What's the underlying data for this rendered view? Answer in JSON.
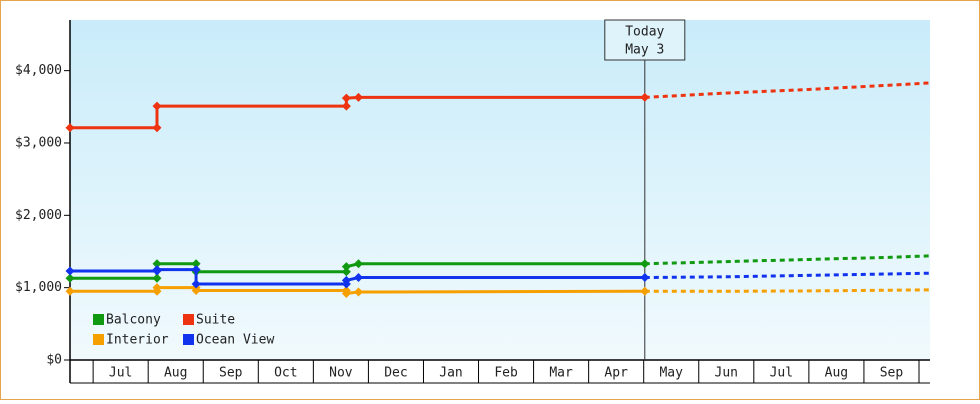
{
  "chart_data": {
    "type": "line",
    "xlim": [
      -0.42,
      15.2
    ],
    "ylim": [
      0,
      4700
    ],
    "yticks": [
      {
        "value": 0,
        "label": "$0"
      },
      {
        "value": 1000,
        "label": "$1,000"
      },
      {
        "value": 2000,
        "label": "$2,000"
      },
      {
        "value": 3000,
        "label": "$3,000"
      },
      {
        "value": 4000,
        "label": "$4,000"
      }
    ],
    "xticks": [
      {
        "value": 0.5,
        "label": "Jul"
      },
      {
        "value": 1.5,
        "label": "Aug"
      },
      {
        "value": 2.5,
        "label": "Sep"
      },
      {
        "value": 3.5,
        "label": "Oct"
      },
      {
        "value": 4.5,
        "label": "Nov"
      },
      {
        "value": 5.5,
        "label": "Dec"
      },
      {
        "value": 6.5,
        "label": "Jan"
      },
      {
        "value": 7.5,
        "label": "Feb"
      },
      {
        "value": 8.5,
        "label": "Mar"
      },
      {
        "value": 9.5,
        "label": "Apr"
      },
      {
        "value": 10.5,
        "label": "May"
      },
      {
        "value": 11.5,
        "label": "Jun"
      },
      {
        "value": 12.5,
        "label": "Jul"
      },
      {
        "value": 13.5,
        "label": "Aug"
      },
      {
        "value": 14.5,
        "label": "Sep"
      }
    ],
    "annotation": {
      "x": 10.02,
      "lines": [
        "Today",
        "May 3"
      ]
    },
    "series": [
      {
        "name": "Balcony",
        "color": "#119911",
        "x": [
          -0.42,
          1.16,
          1.16,
          1.87,
          1.87,
          4.6,
          4.6,
          4.82,
          10.02
        ],
        "values": [
          1130,
          1130,
          1330,
          1330,
          1220,
          1220,
          1290,
          1330,
          1330
        ],
        "forecast_x": [
          10.02,
          11.5,
          13,
          14.5,
          15.2
        ],
        "forecast_values": [
          1330,
          1360,
          1390,
          1420,
          1440
        ]
      },
      {
        "name": "Suite",
        "color": "#ee3311",
        "x": [
          -0.42,
          1.16,
          1.16,
          4.6,
          4.6,
          4.82,
          10.02
        ],
        "values": [
          3210,
          3210,
          3510,
          3510,
          3620,
          3630,
          3630
        ],
        "forecast_x": [
          10.02,
          11.5,
          13,
          14.5,
          15.2
        ],
        "forecast_values": [
          3630,
          3690,
          3740,
          3800,
          3830
        ]
      },
      {
        "name": "Interior",
        "color": "#f5a000",
        "x": [
          -0.42,
          1.16,
          1.16,
          1.87,
          1.87,
          4.6,
          4.6,
          4.82,
          10.02
        ],
        "values": [
          950,
          950,
          1000,
          1000,
          960,
          960,
          920,
          940,
          950
        ],
        "forecast_x": [
          10.02,
          11.5,
          13,
          14.5,
          15.2
        ],
        "forecast_values": [
          950,
          950,
          955,
          965,
          970
        ]
      },
      {
        "name": "Ocean View",
        "color": "#1133ee",
        "x": [
          -0.42,
          1.16,
          1.16,
          1.87,
          1.87,
          4.6,
          4.6,
          4.82,
          10.02
        ],
        "values": [
          1230,
          1230,
          1250,
          1250,
          1050,
          1050,
          1100,
          1140,
          1140
        ],
        "forecast_x": [
          10.02,
          11.5,
          13,
          14.5,
          15.2
        ],
        "forecast_values": [
          1140,
          1150,
          1170,
          1190,
          1200
        ]
      }
    ]
  }
}
